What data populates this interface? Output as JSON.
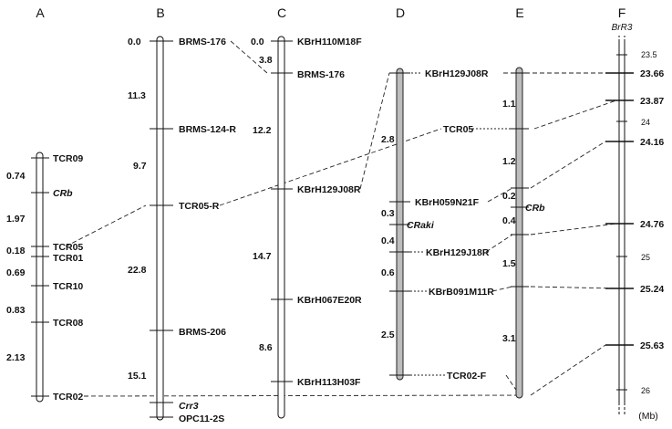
{
  "columns": {
    "A": "A",
    "B": "B",
    "C": "C",
    "D": "D",
    "E": "E",
    "F": "F"
  },
  "gene_header": "BrR3",
  "unit": "(Mb)",
  "chromosome_A": {
    "markers": [
      "TCR09",
      "CRb",
      "TCR05",
      "TCR01",
      "TCR10",
      "TCR08",
      "TCR02"
    ],
    "distances": [
      "0.74",
      "1.97",
      "0.18",
      "0.69",
      "0.83",
      "2.13"
    ]
  },
  "chromosome_B": {
    "markers": [
      "BRMS-176",
      "BRMS-124-R",
      "TCR05-R",
      "BRMS-206",
      "Crr3",
      "OPC11-2S"
    ],
    "distances": [
      "0.0",
      "11.3",
      "9.7",
      "22.8",
      "15.1"
    ]
  },
  "chromosome_C": {
    "markers": [
      "KBrH110M18F",
      "BRMS-176",
      "KBrH129J08R",
      "KBrH067E20R",
      "KBrH113H03F"
    ],
    "distances": [
      "0.0",
      "3.8",
      "12.2",
      "14.7",
      "8.6"
    ]
  },
  "chromosome_D": {
    "markers": [
      "KBrH129J08R",
      "KBrH059N21F",
      "CRaki",
      "KBrH129J18R",
      "KBrB091M11R",
      "TCR02-F"
    ],
    "distances": [
      "2.8",
      "0.3",
      "0.4",
      "0.6",
      "2.5"
    ]
  },
  "chromosome_E": {
    "markers": [
      "TCR05",
      "CRb"
    ],
    "distances": [
      "1.1",
      "1.2",
      "0.2",
      "0.4",
      "1.5",
      "3.1"
    ]
  },
  "chromosome_F": {
    "major_ticks": [
      "23.66",
      "23.87",
      "24.16",
      "24.76",
      "25.24",
      "25.63"
    ],
    "minor_ticks": [
      "23.5",
      "24",
      "25",
      "26"
    ]
  }
}
